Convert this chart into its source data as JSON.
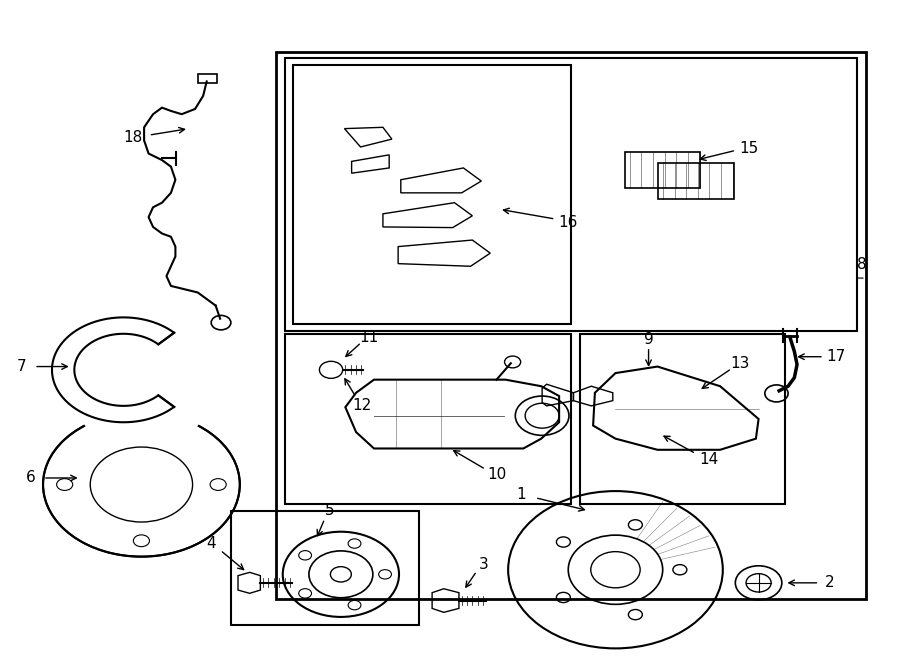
{
  "bg_color": "#ffffff",
  "line_color": "#000000",
  "fig_width": 9.0,
  "fig_height": 6.61,
  "dpi": 100,
  "font_size": 11
}
